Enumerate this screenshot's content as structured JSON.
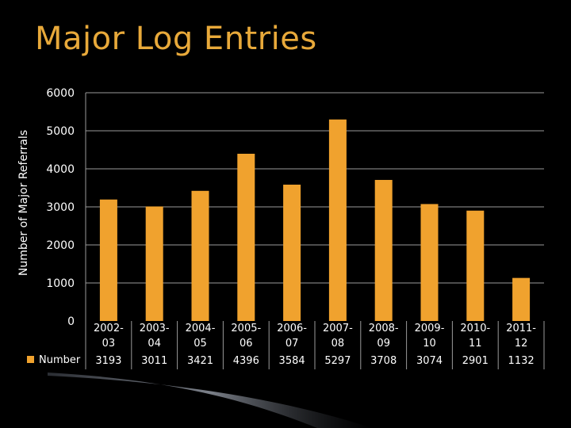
{
  "slide": {
    "title": "Major Log Entries",
    "colors": {
      "background": "#000000",
      "title": "#e8a93a",
      "bar": "#f0a22e",
      "grid": "#9a9a9a",
      "band": "#6b7078"
    }
  },
  "chart_data": {
    "type": "bar",
    "title": "",
    "xlabel": "",
    "ylabel": "Number of Major Referrals",
    "ylim": [
      0,
      6000
    ],
    "yticks": [
      "0",
      "1000",
      "2000",
      "3000",
      "4000",
      "5000",
      "6000"
    ],
    "grid": true,
    "legend": "data-table",
    "categories": [
      [
        "2002-",
        "03"
      ],
      [
        "2003-",
        "04"
      ],
      [
        "2004-",
        "05"
      ],
      [
        "2005-",
        "06"
      ],
      [
        "2006-",
        "07"
      ],
      [
        "2007-",
        "08"
      ],
      [
        "2008-",
        "09"
      ],
      [
        "2009-",
        "10"
      ],
      [
        "2010-",
        "11"
      ],
      [
        "2011-",
        "12"
      ]
    ],
    "series": [
      {
        "name": "Number",
        "values": [
          3193,
          3011,
          3421,
          4396,
          3584,
          5297,
          3708,
          3074,
          2901,
          1132
        ]
      }
    ]
  }
}
